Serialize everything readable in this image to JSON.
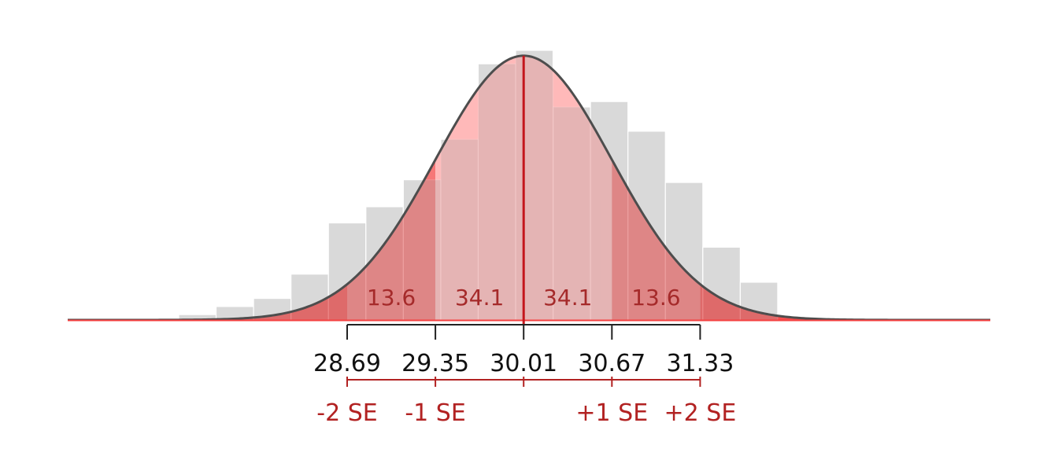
{
  "chart_data": {
    "type": "bar",
    "title": "",
    "xlabel": "",
    "ylabel": "",
    "mean": 30.01,
    "se": 0.66,
    "xlim": [
      26.6,
      33.5
    ],
    "ylim": [
      0,
      1.0
    ],
    "histogram": {
      "bin_width": 0.28,
      "bins_x_start": [
        27.43,
        27.71,
        27.99,
        28.27,
        28.55,
        28.83,
        29.11,
        29.39,
        29.67,
        29.95,
        30.23,
        30.51,
        30.79,
        31.07,
        31.35,
        31.63
      ],
      "heights": [
        0.02,
        0.05,
        0.08,
        0.17,
        0.36,
        0.42,
        0.52,
        0.67,
        0.95,
        1.0,
        0.79,
        0.81,
        0.7,
        0.51,
        0.27,
        0.14
      ]
    },
    "curve": {
      "type": "normal",
      "peak_density": 0.98
    },
    "mean_line": {
      "x": 30.01,
      "color": "#c4161c"
    },
    "axis_ticks": {
      "values": [
        28.69,
        29.35,
        30.01,
        30.67,
        31.33
      ],
      "labels": [
        "28.69",
        "29.35",
        "30.01",
        "30.67",
        "31.33"
      ]
    },
    "se_scale": {
      "tick_values": [
        28.69,
        29.35,
        30.01,
        30.67,
        31.33
      ],
      "labels": [
        {
          "x": 28.69,
          "text": "-2 SE"
        },
        {
          "x": 29.35,
          "text": "-1 SE"
        },
        {
          "x": 30.67,
          "text": "+1 SE"
        },
        {
          "x": 31.33,
          "text": "+2 SE"
        }
      ]
    },
    "regions": [
      {
        "from": 28.69,
        "to": 29.35,
        "percent": "13.6",
        "label_x": 29.02
      },
      {
        "from": 29.35,
        "to": 30.01,
        "percent": "34.1",
        "label_x": 29.68
      },
      {
        "from": 30.01,
        "to": 30.67,
        "percent": "34.1",
        "label_x": 30.34
      },
      {
        "from": 30.67,
        "to": 31.33,
        "percent": "13.6",
        "label_x": 31.0
      }
    ],
    "colors": {
      "hist_bar": "#d9d9d9",
      "tail": "#f44040",
      "outer_band": "#f56d6d",
      "inner_band": "#ffb3b3",
      "curve_line": "#4d4d4d",
      "se_color": "#b22222",
      "axis_color": "#222222"
    }
  }
}
